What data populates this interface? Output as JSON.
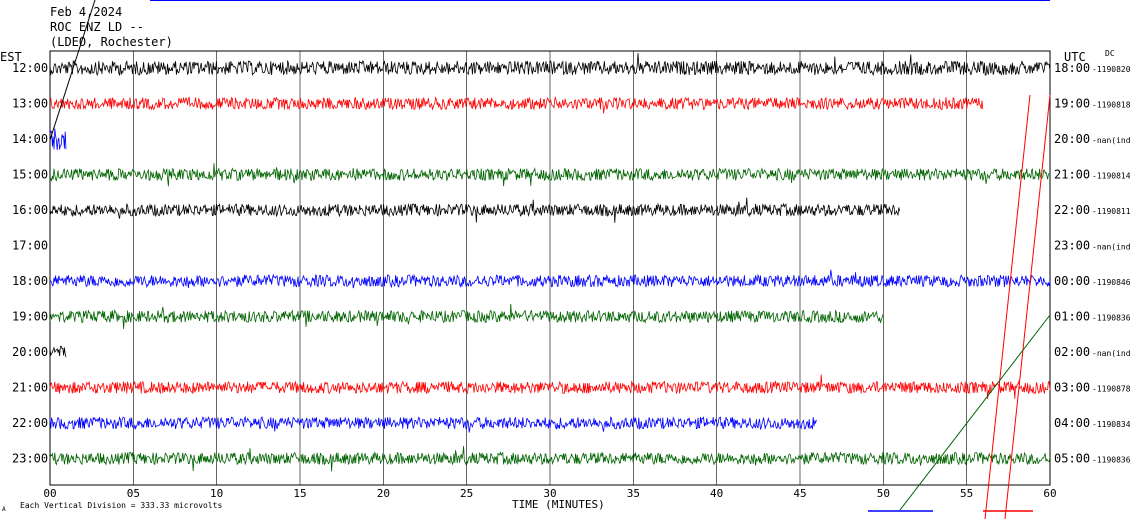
{
  "header": {
    "date": "Feb 4,2024",
    "station": "ROC ENZ LD --",
    "network": "(LDEO, Rochester)"
  },
  "labels": {
    "left_tz": "EST",
    "right_tz": "UTC",
    "dc": "DC",
    "xlabel": "TIME (MINUTES)",
    "scale_note": "Each Vertical Division =  333.33 microvolts",
    "scale_mark": "A"
  },
  "chart_data": {
    "type": "line",
    "title": "",
    "xlabel": "TIME (MINUTES)",
    "xlim": [
      0,
      60
    ],
    "xticks": [
      "00",
      "05",
      "10",
      "15",
      "20",
      "25",
      "30",
      "35",
      "40",
      "45",
      "50",
      "55",
      "60"
    ],
    "grid": true,
    "rows": [
      {
        "est": "12:00",
        "utc": "18:00",
        "dc": "-1190820",
        "color": "#000000",
        "start": 0,
        "end": 60,
        "amp": 7
      },
      {
        "est": "13:00",
        "utc": "19:00",
        "dc": "-1190818",
        "color": "#ff0000",
        "start": 0,
        "end": 56,
        "amp": 6
      },
      {
        "est": "14:00",
        "utc": "20:00",
        "dc": "-nan(ind)",
        "color": "#0000ff",
        "start": 0,
        "end": 1,
        "amp": 12
      },
      {
        "est": "15:00",
        "utc": "21:00",
        "dc": "-1190814",
        "color": "#006400",
        "start": 0,
        "end": 60,
        "amp": 6
      },
      {
        "est": "16:00",
        "utc": "22:00",
        "dc": "-1190811",
        "color": "#000000",
        "start": 0,
        "end": 51,
        "amp": 6
      },
      {
        "est": "17:00",
        "utc": "23:00",
        "dc": "-nan(ind)",
        "color": "#ff0000",
        "start": 0,
        "end": 0,
        "amp": 0
      },
      {
        "est": "18:00",
        "utc": "00:00",
        "dc": "-1190846",
        "color": "#0000ff",
        "start": 0,
        "end": 60,
        "amp": 6
      },
      {
        "est": "19:00",
        "utc": "01:00",
        "dc": "-1190836",
        "color": "#006400",
        "start": 0,
        "end": 50,
        "amp": 6
      },
      {
        "est": "20:00",
        "utc": "02:00",
        "dc": "-nan(ind)",
        "color": "#000000",
        "start": 0,
        "end": 1,
        "amp": 6
      },
      {
        "est": "21:00",
        "utc": "03:00",
        "dc": "-1190878",
        "color": "#ff0000",
        "start": 0,
        "end": 60,
        "amp": 6
      },
      {
        "est": "22:00",
        "utc": "04:00",
        "dc": "-1190834",
        "color": "#0000ff",
        "start": 0,
        "end": 46,
        "amp": 6
      },
      {
        "est": "23:00",
        "utc": "05:00",
        "dc": "-1190836",
        "color": "#006400",
        "start": 0,
        "end": 60,
        "amp": 6
      }
    ],
    "colors": [
      "#000000",
      "#ff0000",
      "#0000ff",
      "#006400"
    ]
  }
}
